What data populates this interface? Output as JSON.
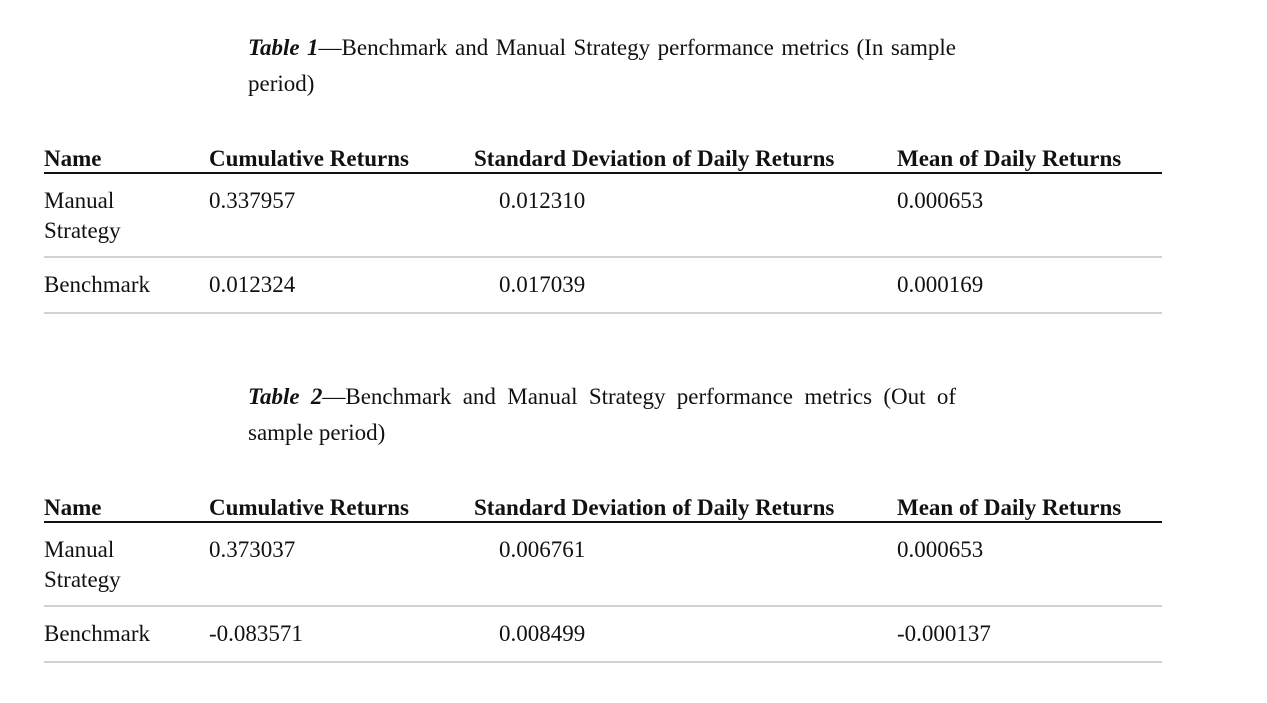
{
  "tables": [
    {
      "caption_label": "Table 1",
      "caption_sep": "—",
      "caption_text": "Benchmark and Manual Strategy performance metrics (In sample period)",
      "columns": [
        "Name",
        "Cumulative Returns",
        "Standard Deviation of Daily Returns",
        "Mean of Daily Returns"
      ],
      "rows": [
        {
          "name": "Manual Strategy",
          "cumulative_returns": "0.337957",
          "std_daily_returns": "0.012310",
          "mean_daily_returns": "0.000653"
        },
        {
          "name": "Benchmark",
          "cumulative_returns": "0.012324",
          "std_daily_returns": "0.017039",
          "mean_daily_returns": "0.000169"
        }
      ]
    },
    {
      "caption_label": "Table 2",
      "caption_sep": "—",
      "caption_text": "Benchmark and Manual Strategy performance metrics (Out of sample period)",
      "columns": [
        "Name",
        "Cumulative Returns",
        "Standard Deviation of Daily Returns",
        "Mean of Daily Returns"
      ],
      "rows": [
        {
          "name": "Manual Strategy",
          "cumulative_returns": "0.373037",
          "std_daily_returns": "0.006761",
          "mean_daily_returns": "0.000653"
        },
        {
          "name": "Benchmark",
          "cumulative_returns": "-0.083571",
          "std_daily_returns": "0.008499",
          "mean_daily_returns": "-0.000137"
        }
      ]
    }
  ]
}
